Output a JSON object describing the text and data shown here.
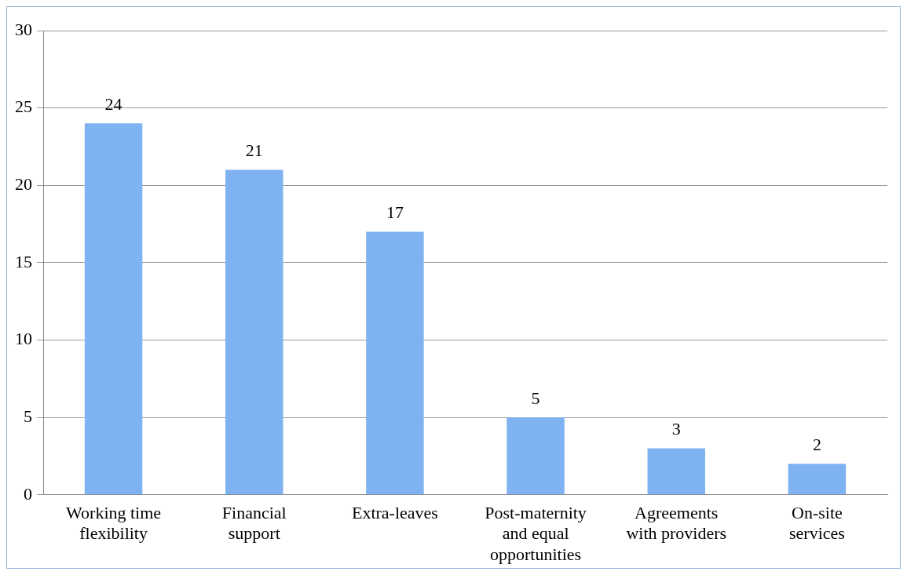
{
  "chart_data": {
    "type": "bar",
    "categories": [
      "Working time flexibility",
      "Financial support",
      "Extra-leaves",
      "Post-maternity and equal opportunities",
      "Agreements with providers",
      "On-site services"
    ],
    "values": [
      24,
      21,
      17,
      5,
      3,
      2
    ],
    "color": "#7fb2f0",
    "ylim": [
      0,
      30
    ],
    "yticks": [
      0,
      5,
      10,
      15,
      20,
      25,
      30
    ],
    "grid": "y",
    "data_labels": true
  }
}
